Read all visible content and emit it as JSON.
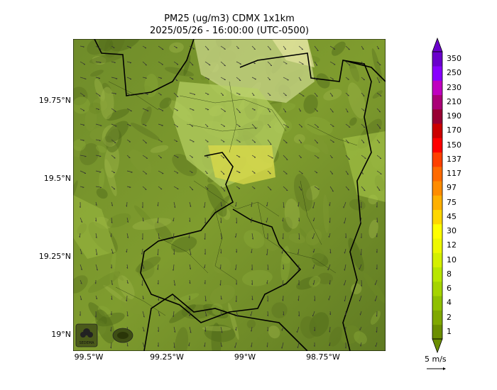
{
  "title": {
    "line1": "PM25 (ug/m3) CDMX 1x1km",
    "line2": "2025/05/26 - 16:00:00 (UTC-0500)"
  },
  "axes": {
    "lat_ticks": [
      {
        "label": "19.75°N",
        "value": 19.75
      },
      {
        "label": "19.5°N",
        "value": 19.5
      },
      {
        "label": "19.25°N",
        "value": 19.25
      },
      {
        "label": "19°N",
        "value": 19.0
      }
    ],
    "lon_ticks": [
      {
        "label": "99.5°W",
        "value": -99.5
      },
      {
        "label": "99.25°W",
        "value": -99.25
      },
      {
        "label": "99°W",
        "value": -99.0
      },
      {
        "label": "98.75°W",
        "value": -98.75
      }
    ]
  },
  "colorbar": {
    "levels": [
      "1",
      "2",
      "4",
      "6",
      "8",
      "10",
      "12",
      "30",
      "45",
      "75",
      "97",
      "117",
      "137",
      "150",
      "170",
      "190",
      "210",
      "230",
      "250",
      "350"
    ],
    "colors": [
      "#6b8e00",
      "#7fa800",
      "#8fc000",
      "#a5d400",
      "#b8e600",
      "#d4f000",
      "#eef800",
      "#ffff00",
      "#ffd700",
      "#ffb000",
      "#ff8c00",
      "#ff6a00",
      "#ff4000",
      "#ff0000",
      "#cc0000",
      "#990033",
      "#aa0077",
      "#c000c0",
      "#8800ff",
      "#6a00cc"
    ]
  },
  "wind_scale": {
    "label": "5 m/s"
  },
  "logos": {
    "left": "SEDEMA"
  }
}
